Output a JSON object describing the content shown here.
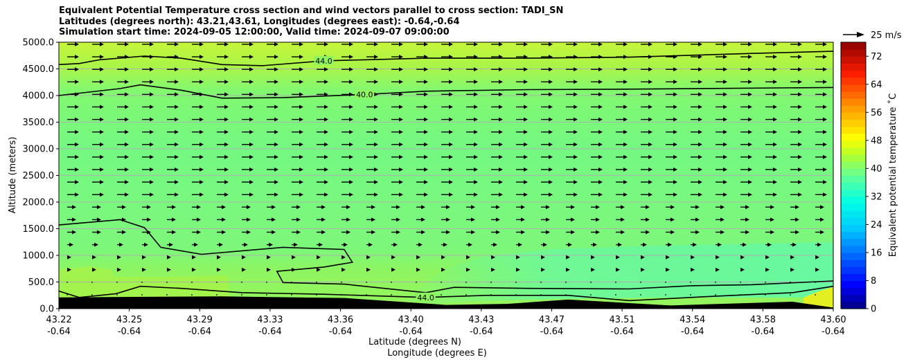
{
  "chart_data": {
    "type": "heatmap",
    "title": [
      "Equivalent Potential Temperature cross section and wind vectors parallel to cross section: TADI_SN",
      "Latitudes (degrees north): 43.21,43.61, Longitudes (degrees east): -0.64,-0.64",
      "Simulation start time: 2024-09-05 12:00:00, Valid time: 2024-09-07 09:00:00"
    ],
    "xlabel": "Latitude (degrees N)",
    "xlabel2": "Longitude (degrees E)",
    "ylabel": "Altitude (meters)",
    "x_tick_lat": [
      "43.22",
      "43.25",
      "43.29",
      "43.33",
      "43.36",
      "43.40",
      "43.43",
      "43.47",
      "43.51",
      "43.54",
      "43.58",
      "43.60"
    ],
    "x_tick_lon": [
      "-0.64",
      "-0.64",
      "-0.64",
      "-0.64",
      "-0.64",
      "-0.64",
      "-0.64",
      "-0.64",
      "-0.64",
      "-0.64",
      "-0.64",
      "-0.64"
    ],
    "y_ticks": [
      "0.0",
      "500.0",
      "1000.0",
      "1500.0",
      "2000.0",
      "2500.0",
      "3000.0",
      "3500.0",
      "4000.0",
      "4500.0",
      "5000.0"
    ],
    "ylim": [
      0,
      5000
    ],
    "xlim": [
      43.22,
      43.6
    ],
    "grid": true,
    "colorbar": {
      "label": "Equivalent potential temperature ˚C",
      "ticks": [
        "0",
        "8",
        "16",
        "24",
        "32",
        "40",
        "48",
        "56",
        "64",
        "72"
      ],
      "range": [
        0,
        76
      ]
    },
    "quiver_key": "25 m/s",
    "contours": [
      {
        "level": 44.0,
        "label": "44.0",
        "points": [
          [
            43.22,
            4580
          ],
          [
            43.23,
            4600
          ],
          [
            43.24,
            4670
          ],
          [
            43.262,
            4740
          ],
          [
            43.28,
            4700
          ],
          [
            43.3,
            4580
          ],
          [
            43.32,
            4560
          ],
          [
            43.35,
            4650
          ],
          [
            43.37,
            4670
          ],
          [
            43.4,
            4700
          ],
          [
            43.45,
            4700
          ],
          [
            43.5,
            4720
          ],
          [
            43.56,
            4790
          ],
          [
            43.6,
            4830
          ]
        ]
      },
      {
        "level": 40.0,
        "label": "40.0",
        "points": [
          [
            43.22,
            4000
          ],
          [
            43.25,
            4130
          ],
          [
            43.26,
            4200
          ],
          [
            43.28,
            4100
          ],
          [
            43.3,
            3950
          ],
          [
            43.33,
            3960
          ],
          [
            43.37,
            4020
          ],
          [
            43.4,
            4080
          ],
          [
            43.45,
            4110
          ],
          [
            43.5,
            4120
          ],
          [
            43.6,
            4150
          ]
        ]
      },
      {
        "level": 40.0,
        "label": "",
        "points": [
          [
            43.22,
            1570
          ],
          [
            43.25,
            1670
          ],
          [
            43.262,
            1520
          ],
          [
            43.27,
            1150
          ],
          [
            43.29,
            1020
          ],
          [
            43.33,
            1150
          ],
          [
            43.36,
            1110
          ],
          [
            43.364,
            870
          ],
          [
            43.35,
            780
          ],
          [
            43.327,
            700
          ],
          [
            43.33,
            490
          ],
          [
            43.36,
            460
          ],
          [
            43.4,
            300
          ],
          [
            43.414,
            400
          ],
          [
            43.45,
            380
          ],
          [
            43.5,
            370
          ],
          [
            43.53,
            430
          ],
          [
            43.56,
            450
          ],
          [
            43.6,
            520
          ]
        ]
      },
      {
        "level": 44.0,
        "label": "44.0",
        "points": [
          [
            43.22,
            330
          ],
          [
            43.23,
            210
          ],
          [
            43.248,
            280
          ],
          [
            43.26,
            420
          ],
          [
            43.28,
            380
          ],
          [
            43.31,
            300
          ],
          [
            43.35,
            270
          ],
          [
            43.4,
            210
          ],
          [
            43.43,
            250
          ],
          [
            43.47,
            250
          ],
          [
            43.5,
            150
          ],
          [
            43.54,
            230
          ],
          [
            43.58,
            300
          ],
          [
            43.6,
            420
          ]
        ]
      }
    ],
    "terrain": [
      [
        43.22,
        210
      ],
      [
        43.25,
        220
      ],
      [
        43.3,
        230
      ],
      [
        43.36,
        200
      ],
      [
        43.41,
        70
      ],
      [
        43.44,
        90
      ],
      [
        43.47,
        170
      ],
      [
        43.52,
        60
      ],
      [
        43.58,
        130
      ],
      [
        43.6,
        20
      ]
    ]
  }
}
